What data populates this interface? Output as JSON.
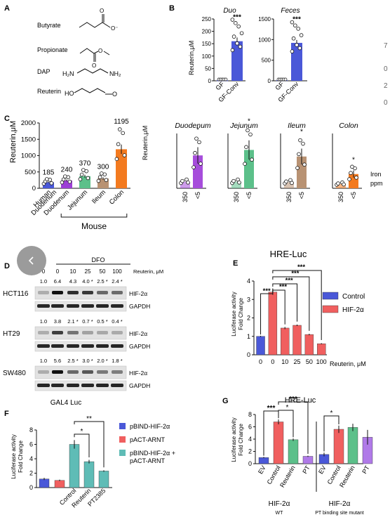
{
  "panelA": {
    "letter": "A",
    "chemicals": [
      {
        "name": "Butyrate",
        "ox": "O",
        "om": "O⁻"
      },
      {
        "name": "Propionate",
        "ox": "O",
        "om": "O"
      },
      {
        "name": "DAP",
        "n1": "H₂N",
        "n2": "NH₂"
      },
      {
        "name": "Reuterin",
        "ho": "HO",
        "o": "O"
      }
    ]
  },
  "panelB": {
    "letter": "B",
    "ylabel": "Reuterin,μM",
    "sig": "***",
    "xcats": [
      "GF",
      "GF-Conv"
    ],
    "charts": [
      {
        "title": "Duo",
        "yticks": [
          0,
          50,
          100,
          150,
          200,
          250
        ],
        "ymax": 250,
        "gf": 2,
        "conv": 160,
        "err": 15
      },
      {
        "title": "Feces",
        "yticks": [
          0,
          500,
          1000,
          1500
        ],
        "ymax": 1500,
        "gf": 15,
        "conv": 920,
        "err": 70
      }
    ]
  },
  "panelC": {
    "letter": "C",
    "ylabel": "Reuterin,μM",
    "yticks": [
      0,
      500,
      1000,
      1500,
      2000
    ],
    "categories": [
      "Human Duodenum",
      "Duodenum",
      "Jejunum",
      "Ileum",
      "Colon"
    ],
    "cat_lines": [
      [
        "Human",
        "Duodenum"
      ],
      [
        "Duodenum"
      ],
      [
        "Jejunum"
      ],
      [
        "Ileum"
      ],
      [
        "Colon"
      ]
    ],
    "values": [
      185,
      240,
      370,
      300,
      1195
    ],
    "value_labels": [
      "185",
      "240",
      "370",
      "300",
      "1195"
    ],
    "group_label": "Mouse",
    "colors": [
      "#4a58d8",
      "#9c3fd6",
      "#5cc08a",
      "#b89273",
      "#f37a1f"
    ],
    "iron": {
      "ylabel": "Reuterin,μM",
      "xcats": [
        "350",
        "<5"
      ],
      "sig": "*",
      "unit_line1": "Iron",
      "unit_line2": "ppm",
      "charts": [
        {
          "title": "Duodenum",
          "low": 30,
          "high": 150,
          "color": "#a64ddb"
        },
        {
          "title": "Jejunum",
          "low": 30,
          "high": 175,
          "color": "#5cc08a"
        },
        {
          "title": "Ileum",
          "low": 28,
          "high": 145,
          "color": "#b89273"
        },
        {
          "title": "Colon",
          "low": 20,
          "high": 65,
          "color": "#f37a1f"
        }
      ]
    }
  },
  "panelD": {
    "letter": "D",
    "dfo": "DFO",
    "reuterin_label": "Reuterin, μM",
    "concs": [
      "0",
      "0",
      "10",
      "25",
      "50",
      "100"
    ],
    "blots": [
      {
        "cell": "HCT116",
        "quant": [
          "1.0",
          "6.4",
          "4.3",
          "4.0 *",
          "2.5 *",
          "2.4 *"
        ]
      },
      {
        "cell": "HT29",
        "quant": [
          "1.0",
          "3.8",
          "2.1 *",
          "0.7 *",
          "0.5 *",
          "0.4 *"
        ]
      },
      {
        "cell": "SW480",
        "quant": [
          "1.0",
          "5.6",
          "2.5 *",
          "3.0 *",
          "2.0 *",
          "1.8 *"
        ]
      }
    ],
    "target": "HIF-2α",
    "loading": "GAPDH"
  },
  "panelE": {
    "letter": "E",
    "title": "HRE-Luc",
    "ylabel1": "Luciferase activity",
    "ylabel2": "Fold Change",
    "yticks": [
      0,
      1,
      2,
      3,
      4
    ],
    "xlabels": [
      "0",
      "0",
      "10",
      "25",
      "50",
      "100"
    ],
    "xunit": "Reuterin, μM",
    "values": [
      1.0,
      3.4,
      1.45,
      1.6,
      1.1,
      0.6
    ],
    "errors": [
      0.03,
      0.15,
      0.06,
      0.04,
      0.04,
      0.03
    ],
    "colors": [
      "#4a58d8",
      "#f05f5f",
      "#f05f5f",
      "#f05f5f",
      "#f05f5f",
      "#f05f5f"
    ],
    "legend": [
      {
        "label": "Control",
        "color": "#4a58d8"
      },
      {
        "label": "HIF-2α",
        "color": "#f05f5f"
      }
    ],
    "sig": "***"
  },
  "panelF": {
    "letter": "F",
    "title": "GAL4 Luc",
    "ylabel1": "Luciferase activity",
    "ylabel2": "Fold Change",
    "yticks": [
      0,
      2,
      4,
      6,
      8
    ],
    "values": [
      1.2,
      1.0,
      6.0,
      3.6,
      2.3
    ],
    "errors": [
      0.15,
      0.1,
      0.6,
      0.25,
      0.1
    ],
    "colors": [
      "#4a58d8",
      "#f05f5f",
      "#5fbcb6",
      "#5fbcb6",
      "#5fbcb6"
    ],
    "xlabels": [
      "Control",
      "Reuterin",
      "PT2385"
    ],
    "legend": [
      {
        "label": "pBIND-HIF-2α",
        "color": "#4a58d8"
      },
      {
        "label": "pACT-ARNT",
        "color": "#f05f5f"
      },
      {
        "label": "pBIND-HIF-2α +",
        "label2": "pACT-ARNT",
        "color": "#5fbcb6"
      }
    ],
    "sig1": "*",
    "sig2": "**"
  },
  "panelG": {
    "letter": "G",
    "title": "HRE-Luc",
    "ylabel1": "Luciferase activity",
    "ylabel2": "Fold Change",
    "yticks": [
      0,
      2,
      4,
      6,
      8
    ],
    "values": [
      1.0,
      6.8,
      3.9,
      1.2,
      1.5,
      5.6,
      5.9,
      4.3
    ],
    "errors": [
      0.1,
      0.4,
      0.2,
      0.1,
      0.3,
      0.6,
      0.6,
      1.2
    ],
    "colors": [
      "#4a58d8",
      "#f05f5f",
      "#5cc08a",
      "#b07ae8",
      "#4a58d8",
      "#f05f5f",
      "#5cc08a",
      "#b07ae8"
    ],
    "xlabels": [
      "EV",
      "Control",
      "Reuterin",
      "PT",
      "EV",
      "Control",
      "Reuterin",
      "PT"
    ],
    "group1": "HIF-2α",
    "group1_sub": "WT",
    "group2": "HIF-2α",
    "group2_sub": "PT binding site mutant",
    "sig_a": "***",
    "sig_b": "*",
    "sig_c": "***",
    "sig_d": "*"
  },
  "ui": {
    "right_edge_glyphs": [
      "7",
      "0",
      "2",
      "0"
    ]
  }
}
